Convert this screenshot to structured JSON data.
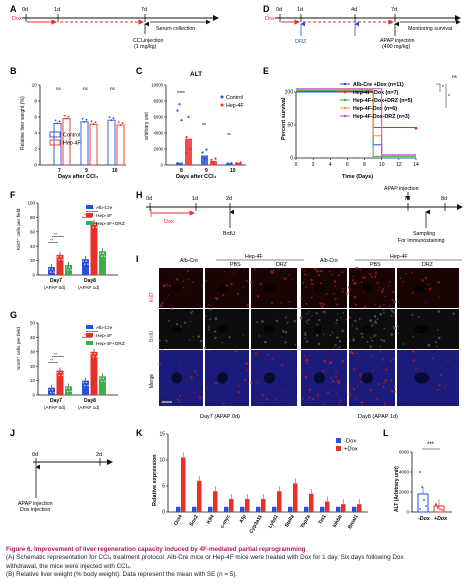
{
  "colors": {
    "red": "#e8302a",
    "blue": "#2b4fd6",
    "green": "#3fae49",
    "orange": "#f39a2a",
    "magenta": "#cc4bd0",
    "black": "#111111",
    "caption": "#b5156b"
  },
  "panelA": {
    "letter": "A",
    "d0": "0d",
    "d1": "1d",
    "d7": "7d",
    "dox": "Dox",
    "serum": "Serum collection",
    "ccl4a": "CCl₄injection",
    "ccl4b": "(1 mg/kg)"
  },
  "panelD": {
    "letter": "D",
    "d0": "0d",
    "d1": "1d",
    "d4": "4d",
    "d7": "7d",
    "dox": "Dox",
    "drz": "DRZ",
    "monitor": "Monitoring survival",
    "apapa": "APAP injection",
    "apapb": "(400 mg/kg)"
  },
  "panelB": {
    "letter": "B",
    "ylabel": "Relative liver weight (%)",
    "xlabel": "Days after CCl₄",
    "ns": "ns"
  },
  "panelC": {
    "letter": "C",
    "title": "ALT",
    "ylabel": "arbitrary unit",
    "xlabel": "Days after CCl₄",
    "sig": [
      "****",
      "**",
      "**"
    ]
  },
  "panelE": {
    "letter": "E",
    "ylabel": "Percent survival",
    "xlabel": "Time (Days)",
    "legend": [
      "Alb-Cre +Dox (n=11)",
      "Hep-4F+Dox (n=7)",
      "Hep-4F+Dox+DRZ (n=5)",
      "Hep-4F-Dox (n=6)",
      "Hep-4F-Dox-DRZ (n=3)"
    ],
    "sig": [
      "*",
      "*",
      "ns"
    ]
  },
  "panelF": {
    "letter": "F",
    "ylabel": "Ki67⁺ cells per field",
    "legend": [
      "Alb-Cre",
      "Hep-4F",
      "Hep-4F+DRZ"
    ]
  },
  "panelG": {
    "letter": "G",
    "ylabel": "Sox9⁺ cells per field",
    "legend": [
      "Alb-Cre",
      "Hep-4F",
      "Hep-4F+DRZ"
    ]
  },
  "panelFG": {
    "x1": "Day7",
    "x1b": "(APAP 0d)",
    "x2": "Day8",
    "x2b": "(APAP 1d)"
  },
  "panelH": {
    "letter": "H",
    "d0": "0d",
    "d1": "1d",
    "d2": "2d",
    "d7": "7d",
    "d8": "8d",
    "dox": "Dox",
    "brdu": "BrdU",
    "apap": "APAP injection",
    "sampling": "Sampling",
    "immuno": "For immunostaining"
  },
  "panelI": {
    "letter": "I",
    "alb": "Alb-Cre",
    "hep": "Hep-4F",
    "pbs": "PBS",
    "drz": "DRZ",
    "rows": [
      "Ki67",
      "BrdU",
      "Merge"
    ],
    "day7": "Day7 (APAP 0d)",
    "day8": "Day8 (APAP 1d)"
  },
  "panelJ": {
    "letter": "J",
    "d0": "0d",
    "d2": "2d",
    "apap": "APAP injection",
    "dox": "Dox injection"
  },
  "panelK": {
    "letter": "K",
    "ylabel": "Relative expression",
    "legend": [
      "-Dox",
      "+Dox"
    ]
  },
  "panelL": {
    "letter": "L",
    "ylabel": "ALT (Arbitrary unit)",
    "sig": "***",
    "x1": "-Dox",
    "x2": "+Dox"
  },
  "caption": {
    "title": "Figure 6.  Improvement of liver regeneration capacity induced by 4F-mediated partial reprogramming",
    "l1": "(A) Schematic representation for CCl₄ treatment protocol. Alb-Cre mice or Hep-4F mice were treated with Dox for 1 day. Six days following Dox",
    "l2": "withdrawal, the mice were injected with CCl₄.",
    "l3": "(B) Relative liver weight (% body weight). Data represent the mean with SE (n = 5)."
  },
  "chart_data": [
    {
      "panel": "B",
      "type": "bar",
      "categories": [
        "7",
        "9",
        "10"
      ],
      "ylim": [
        0,
        10
      ],
      "yticks": [
        0,
        2,
        4,
        6,
        8,
        10
      ],
      "xlabel": "Days after CCl₄",
      "ylabel": "Relative liver weight (%)",
      "series": [
        {
          "name": "Control",
          "values": [
            5.2,
            5.4,
            5.6
          ]
        },
        {
          "name": "Hep-4F",
          "values": [
            5.8,
            5.1,
            5.0
          ]
        }
      ]
    },
    {
      "panel": "C",
      "type": "bar",
      "categories": [
        "8",
        "9",
        "10"
      ],
      "ylim": [
        0,
        10000
      ],
      "yticks": [
        0,
        2000,
        4000,
        6000,
        8000,
        10000
      ],
      "xlabel": "Days after CCl₄",
      "ylabel": "arbitrary unit",
      "series": [
        {
          "name": "Control",
          "values": [
            300,
            1200,
            150
          ]
        },
        {
          "name": "Hep-4F",
          "values": [
            3300,
            500,
            200
          ]
        }
      ]
    },
    {
      "panel": "E",
      "type": "line",
      "xlim": [
        0,
        14
      ],
      "xticks": [
        0,
        2,
        4,
        6,
        8,
        10,
        12,
        14
      ],
      "ylim": [
        0,
        100
      ],
      "yticks": [
        0,
        50,
        100
      ],
      "xlabel": "Time (Days)",
      "ylabel": "Percent survival",
      "series": [
        {
          "name": "Alb-Cre +Dox (n=11)",
          "x": [
            0,
            8,
            9,
            10,
            14
          ],
          "y": [
            100,
            100,
            20,
            0,
            0
          ]
        },
        {
          "name": "Hep-4F+Dox (n=7)",
          "x": [
            0,
            8,
            9,
            14
          ],
          "y": [
            100,
            100,
            45,
            45
          ]
        },
        {
          "name": "Hep-4F+Dox+DRZ (n=5)",
          "x": [
            0,
            8,
            9,
            14
          ],
          "y": [
            100,
            100,
            0,
            0
          ]
        },
        {
          "name": "Hep-4F-Dox (n=6)",
          "x": [
            0,
            8,
            9,
            10,
            14
          ],
          "y": [
            100,
            100,
            30,
            0,
            0
          ]
        },
        {
          "name": "Hep-4F-Dox-DRZ (n=3)",
          "x": [
            0,
            9,
            10,
            14
          ],
          "y": [
            100,
            100,
            0,
            0
          ]
        }
      ]
    },
    {
      "panel": "F",
      "type": "bar",
      "categories": [
        "Day7",
        "Day8"
      ],
      "ylim": [
        0,
        100
      ],
      "yticks": [
        0,
        20,
        40,
        60,
        80,
        100
      ],
      "ylabel": "Ki67⁺ cells per field",
      "series": [
        {
          "name": "Alb-Cre",
          "values": [
            11,
            22
          ]
        },
        {
          "name": "Hep-4F",
          "values": [
            28,
            73
          ]
        },
        {
          "name": "Hep-4F+DRZ",
          "values": [
            14,
            33
          ]
        }
      ]
    },
    {
      "panel": "G",
      "type": "bar",
      "categories": [
        "Day7",
        "Day8"
      ],
      "ylim": [
        0,
        50
      ],
      "yticks": [
        0,
        10,
        20,
        30,
        40,
        50
      ],
      "ylabel": "Sox9⁺ cells per field",
      "series": [
        {
          "name": "Alb-Cre",
          "values": [
            5,
            10
          ]
        },
        {
          "name": "Hep-4F",
          "values": [
            17,
            30
          ]
        },
        {
          "name": "Hep-4F+DRZ",
          "values": [
            6,
            13
          ]
        }
      ]
    },
    {
      "panel": "K",
      "type": "bar",
      "categories": [
        "Oct4",
        "Sox2",
        "Klf4",
        "c-myc",
        "Afp",
        "Cyp3a11",
        "Ly6d1",
        "Stella",
        "Top2a",
        "Tet1",
        "Inhbb",
        "Bmal1"
      ],
      "ylim": [
        0,
        15
      ],
      "yticks": [
        0,
        5,
        10,
        15
      ],
      "ylabel": "Relative expression",
      "series": [
        {
          "name": "-Dox",
          "values": [
            1,
            1,
            1,
            1,
            1,
            1,
            1,
            1,
            1,
            1,
            1,
            1
          ]
        },
        {
          "name": "+Dox",
          "values": [
            10.5,
            6,
            4,
            2.5,
            2.5,
            2.5,
            4,
            5.5,
            3.5,
            2,
            1.5,
            1.5
          ]
        }
      ]
    },
    {
      "panel": "L",
      "type": "bar",
      "categories": [
        "-Dox",
        "+Dox"
      ],
      "ylim": [
        0,
        6000
      ],
      "yticks": [
        0,
        2000,
        4000,
        6000
      ],
      "ylabel": "ALT (Arbitrary unit)",
      "series": [
        {
          "name": "ALT",
          "values": [
            1800,
            600
          ]
        }
      ]
    }
  ]
}
